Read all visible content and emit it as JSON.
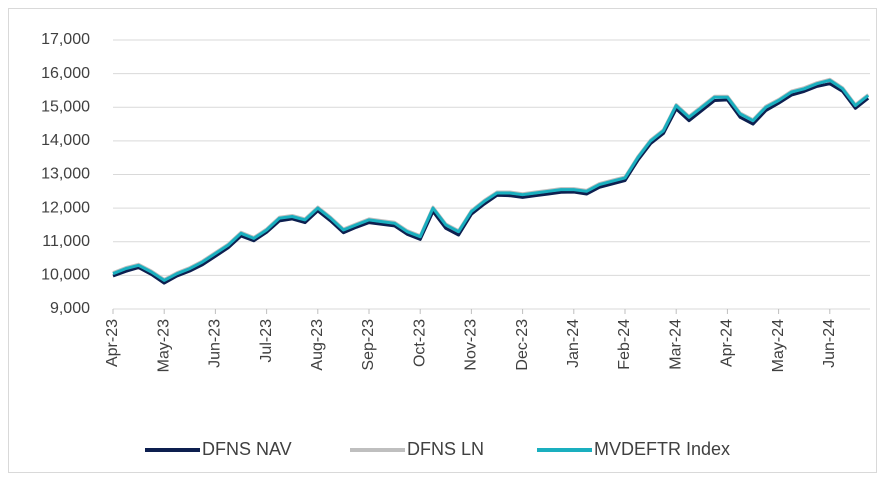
{
  "chart_data": {
    "type": "line",
    "categories": [
      "Apr-23",
      null,
      null,
      null,
      "May-23",
      null,
      null,
      null,
      "Jun-23",
      null,
      null,
      null,
      "Jul-23",
      null,
      null,
      null,
      "Aug-23",
      null,
      null,
      null,
      "Sep-23",
      null,
      null,
      null,
      "Oct-23",
      null,
      null,
      null,
      "Nov-23",
      null,
      null,
      null,
      "Dec-23",
      null,
      null,
      null,
      "Jan-24",
      null,
      null,
      null,
      "Feb-24",
      null,
      null,
      null,
      "Mar-24",
      null,
      null,
      null,
      "Apr-24",
      null,
      null,
      null,
      "May-24",
      null,
      null,
      null,
      "Jun-24",
      null,
      null,
      null
    ],
    "series": [
      {
        "name": "DFNS NAV",
        "color": "#0d1f4f",
        "values": [
          9980,
          10120,
          10230,
          10030,
          9770,
          9980,
          10130,
          10320,
          10570,
          10820,
          11170,
          11030,
          11280,
          11620,
          11680,
          11570,
          11920,
          11620,
          11270,
          11430,
          11570,
          11520,
          11470,
          11220,
          11070,
          11900,
          11400,
          11200,
          11820,
          12120,
          12380,
          12370,
          12320,
          12370,
          12420,
          12470,
          12480,
          12420,
          12620,
          12720,
          12820,
          13420,
          13920,
          14220,
          14950,
          14600,
          14900,
          15200,
          15220,
          14700,
          14500,
          14900,
          15120,
          15360,
          15470,
          15620,
          15700,
          15470,
          14970,
          15270
        ]
      },
      {
        "name": "DFNS LN",
        "color": "#bfbfbf",
        "values": [
          10080,
          10230,
          10330,
          10130,
          9880,
          10080,
          10230,
          10430,
          10680,
          10930,
          11280,
          11130,
          11380,
          11730,
          11780,
          11680,
          12030,
          11730,
          11380,
          11530,
          11680,
          11630,
          11580,
          11330,
          11180,
          12030,
          11530,
          11330,
          11930,
          12230,
          12480,
          12480,
          12430,
          12480,
          12530,
          12580,
          12580,
          12530,
          12730,
          12830,
          12930,
          13530,
          14030,
          14330,
          15080,
          14730,
          15030,
          15330,
          15330,
          14830,
          14630,
          15030,
          15230,
          15480,
          15580,
          15730,
          15830,
          15580,
          15080,
          15380
        ]
      },
      {
        "name": "MVDEFTR Index",
        "color": "#1aafbf",
        "values": [
          10050,
          10200,
          10300,
          10100,
          9850,
          10050,
          10200,
          10400,
          10650,
          10900,
          11250,
          11100,
          11350,
          11700,
          11750,
          11650,
          12000,
          11700,
          11350,
          11500,
          11650,
          11600,
          11550,
          11300,
          11150,
          12000,
          11500,
          11300,
          11900,
          12200,
          12450,
          12450,
          12400,
          12450,
          12500,
          12550,
          12550,
          12500,
          12700,
          12800,
          12900,
          13500,
          14000,
          14300,
          15050,
          14700,
          15000,
          15300,
          15300,
          14800,
          14600,
          15000,
          15200,
          15450,
          15550,
          15700,
          15800,
          15550,
          15050,
          15350
        ]
      }
    ],
    "ylim": [
      9000,
      17000
    ],
    "yticks": [
      {
        "value": 9000,
        "label": "9,000"
      },
      {
        "value": 10000,
        "label": "10,000"
      },
      {
        "value": 11000,
        "label": "11,000"
      },
      {
        "value": 12000,
        "label": "12,000"
      },
      {
        "value": 13000,
        "label": "13,000"
      },
      {
        "value": 14000,
        "label": "14,000"
      },
      {
        "value": 15000,
        "label": "15,000"
      },
      {
        "value": 16000,
        "label": "16,000"
      },
      {
        "value": 17000,
        "label": "17,000"
      }
    ],
    "grid": true,
    "legend": "bottom"
  }
}
